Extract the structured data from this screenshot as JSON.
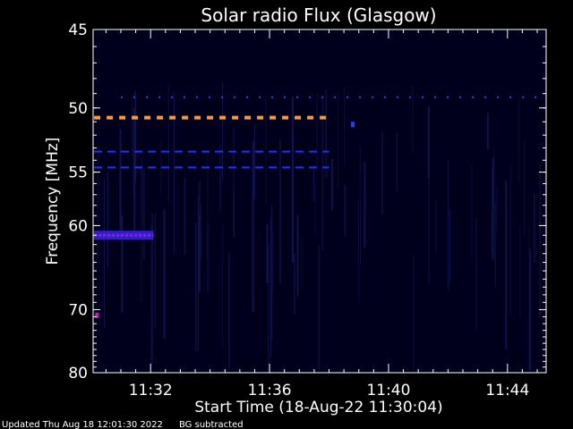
{
  "chart_data": {
    "type": "heatmap",
    "title": "Solar radio Flux (Glasgow)",
    "xlabel": "Start Time (18-Aug-22 11:30:04)",
    "ylabel": "Frequency [MHz]",
    "x_range_minutes": [
      11.5,
      12.0
    ],
    "xlim_minutes": [
      690.067,
      705.3
    ],
    "ylim": [
      45,
      80
    ],
    "y_scale": "reciprocal",
    "x_ticks": [
      {
        "minutes": 692,
        "label": "11:32"
      },
      {
        "minutes": 696,
        "label": "11:36"
      },
      {
        "minutes": 700,
        "label": "11:40"
      },
      {
        "minutes": 704,
        "label": "11:44"
      }
    ],
    "y_ticks": [
      {
        "value": 45,
        "label": "45"
      },
      {
        "value": 50,
        "label": "50"
      },
      {
        "value": 55,
        "label": "55"
      },
      {
        "value": 60,
        "label": "60"
      },
      {
        "value": 70,
        "label": "70"
      },
      {
        "value": 80,
        "label": "80"
      }
    ],
    "features": [
      {
        "kind": "dashed-band",
        "freq": 50.7,
        "x_start": 690.1,
        "x_end": 698.0,
        "color": "#ff9a30"
      },
      {
        "kind": "dashed-band",
        "freq": 53.3,
        "x_start": 690.1,
        "x_end": 698.0,
        "color": "#2030ff"
      },
      {
        "kind": "dashed-band",
        "freq": 54.6,
        "x_start": 690.1,
        "x_end": 698.0,
        "color": "#2030ff"
      },
      {
        "kind": "dotted-band",
        "freq": 49.5,
        "x_start": 691.0,
        "x_end": 705.2,
        "color": "#2040ff"
      },
      {
        "kind": "solid-band",
        "freq": 61.0,
        "x_start": 690.1,
        "x_end": 692.1,
        "color": "#9020d0"
      },
      {
        "kind": "spot",
        "freq": 70.8,
        "x_start": 690.2,
        "x_end": 690.2,
        "color": "#c020c0"
      },
      {
        "kind": "spot",
        "freq": 51.2,
        "x_start": 698.8,
        "x_end": 698.8,
        "color": "#2040ff"
      }
    ]
  },
  "footer": {
    "updated": "Updated Thu Aug 18 12:01:30 2022",
    "note": "BG subtracted"
  },
  "colors": {
    "background": "#000000",
    "plot_background": "#00001c",
    "axis": "#ffffff"
  }
}
